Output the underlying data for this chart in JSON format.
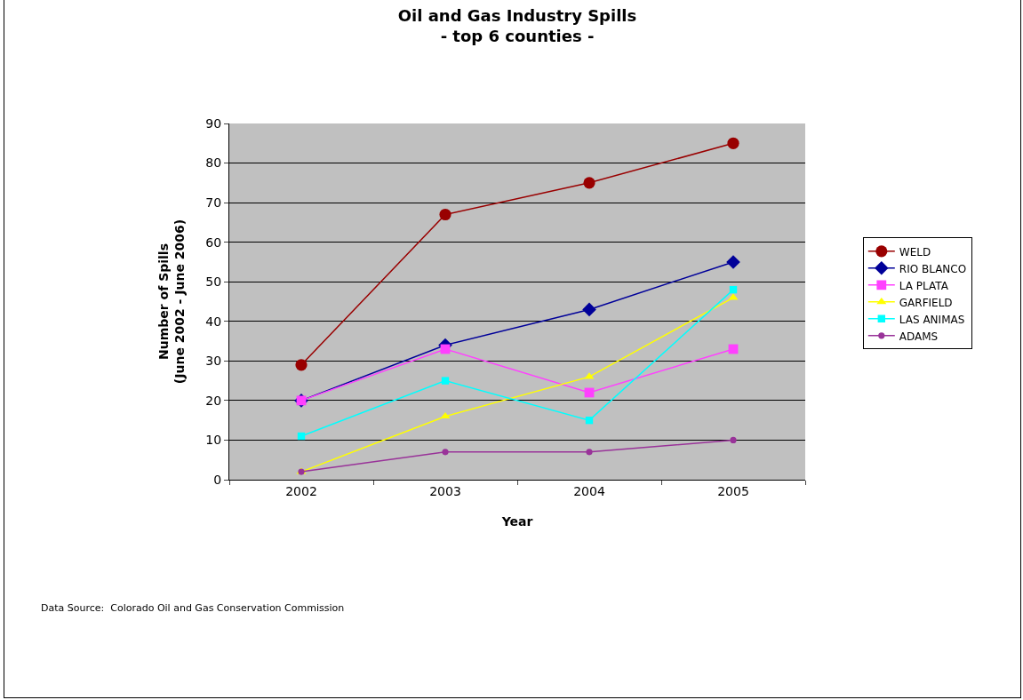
{
  "chart_data": {
    "type": "line",
    "title": "Oil and Gas Industry Spills\n- top 6 counties -",
    "xlabel": "Year",
    "ylabel": "Number of Spills\n(June 2002 - June 2006)",
    "categories": [
      "2002",
      "2003",
      "2004",
      "2005"
    ],
    "series": [
      {
        "name": "WELD",
        "color": "#990000",
        "marker": "circle",
        "values": [
          29,
          67,
          75,
          85
        ]
      },
      {
        "name": "RIO BLANCO",
        "color": "#000099",
        "marker": "diamond",
        "values": [
          20,
          34,
          43,
          55
        ]
      },
      {
        "name": "LA PLATA",
        "color": "#ff40ff",
        "marker": "square",
        "values": [
          20,
          33,
          22,
          33
        ]
      },
      {
        "name": "GARFIELD",
        "color": "#ffff00",
        "marker": "triangle",
        "values": [
          2,
          16,
          26,
          46
        ]
      },
      {
        "name": "LAS ANIMAS",
        "color": "#00ffff",
        "marker": "square",
        "values": [
          11,
          25,
          15,
          48
        ]
      },
      {
        "name": "ADAMS",
        "color": "#993399",
        "marker": "circle",
        "values": [
          2,
          7,
          7,
          10
        ]
      }
    ],
    "ylim": [
      0,
      90
    ],
    "yticks": [
      0,
      10,
      20,
      30,
      40,
      50,
      60,
      70,
      80,
      90
    ],
    "grid": "y",
    "legend": "right",
    "line_style": "solid",
    "annotations": [
      "Data Source:  Colorado Oil and Gas Conservation Commission"
    ]
  }
}
